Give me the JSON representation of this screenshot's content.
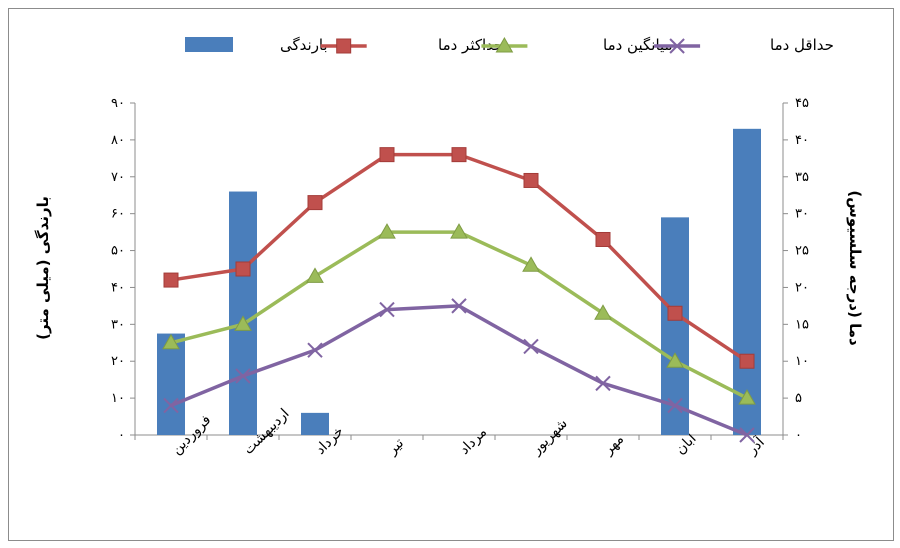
{
  "chart_data": {
    "type": "bar",
    "categories": [
      "فروردین",
      "اردیبهشت",
      "خرداد",
      "تیر",
      "مرداد",
      "شهریور",
      "مهر",
      "آبان",
      "آذر"
    ],
    "left_axis": {
      "label": "بارندگی (میلی متر)",
      "ylim": [
        0,
        90
      ],
      "ticks": [
        "۰",
        "۱۰",
        "۲۰",
        "۳۰",
        "۴۰",
        "۵۰",
        "۶۰",
        "۷۰",
        "۸۰",
        "۹۰"
      ]
    },
    "right_axis": {
      "label": "دما (درجه سلسیوس)",
      "ylim": [
        0,
        45
      ],
      "ticks": [
        "۰",
        "۵",
        "۱۰",
        "۱۵",
        "۲۰",
        "۲۵",
        "۳۰",
        "۳۵",
        "۴۰",
        "۴۵"
      ]
    },
    "series": [
      {
        "name": "بارندگی",
        "type": "bar",
        "axis": "left",
        "color": "#4a7ebb",
        "values": [
          27.5,
          66,
          0,
          0,
          0,
          0,
          0,
          59,
          83
        ]
      },
      {
        "name": "حداکثر دما",
        "type": "line",
        "axis": "right",
        "color": "#c0504d",
        "marker": "square",
        "values": [
          21,
          22.5,
          31.5,
          38,
          38,
          34.5,
          26.5,
          16.5,
          10
        ]
      },
      {
        "name": "میانگین دما",
        "type": "line",
        "axis": "right",
        "color": "#9bbb59",
        "marker": "triangle",
        "values": [
          12.5,
          15,
          21.5,
          27.5,
          27.5,
          23,
          16.5,
          10,
          5
        ]
      },
      {
        "name": "حداقل دما",
        "type": "line",
        "axis": "right",
        "color": "#8064a2",
        "marker": "x",
        "values": [
          4,
          8,
          11.5,
          17,
          17.5,
          12,
          7,
          4,
          0
        ]
      }
    ],
    "extra_bars": [
      {
        "category_index": 2,
        "value": 6
      }
    ],
    "legend_position": "top",
    "grid": false
  },
  "legend_labels": [
    "بارندگی",
    "حداکثر دما",
    "میانگین دما",
    "حداقل دما"
  ]
}
